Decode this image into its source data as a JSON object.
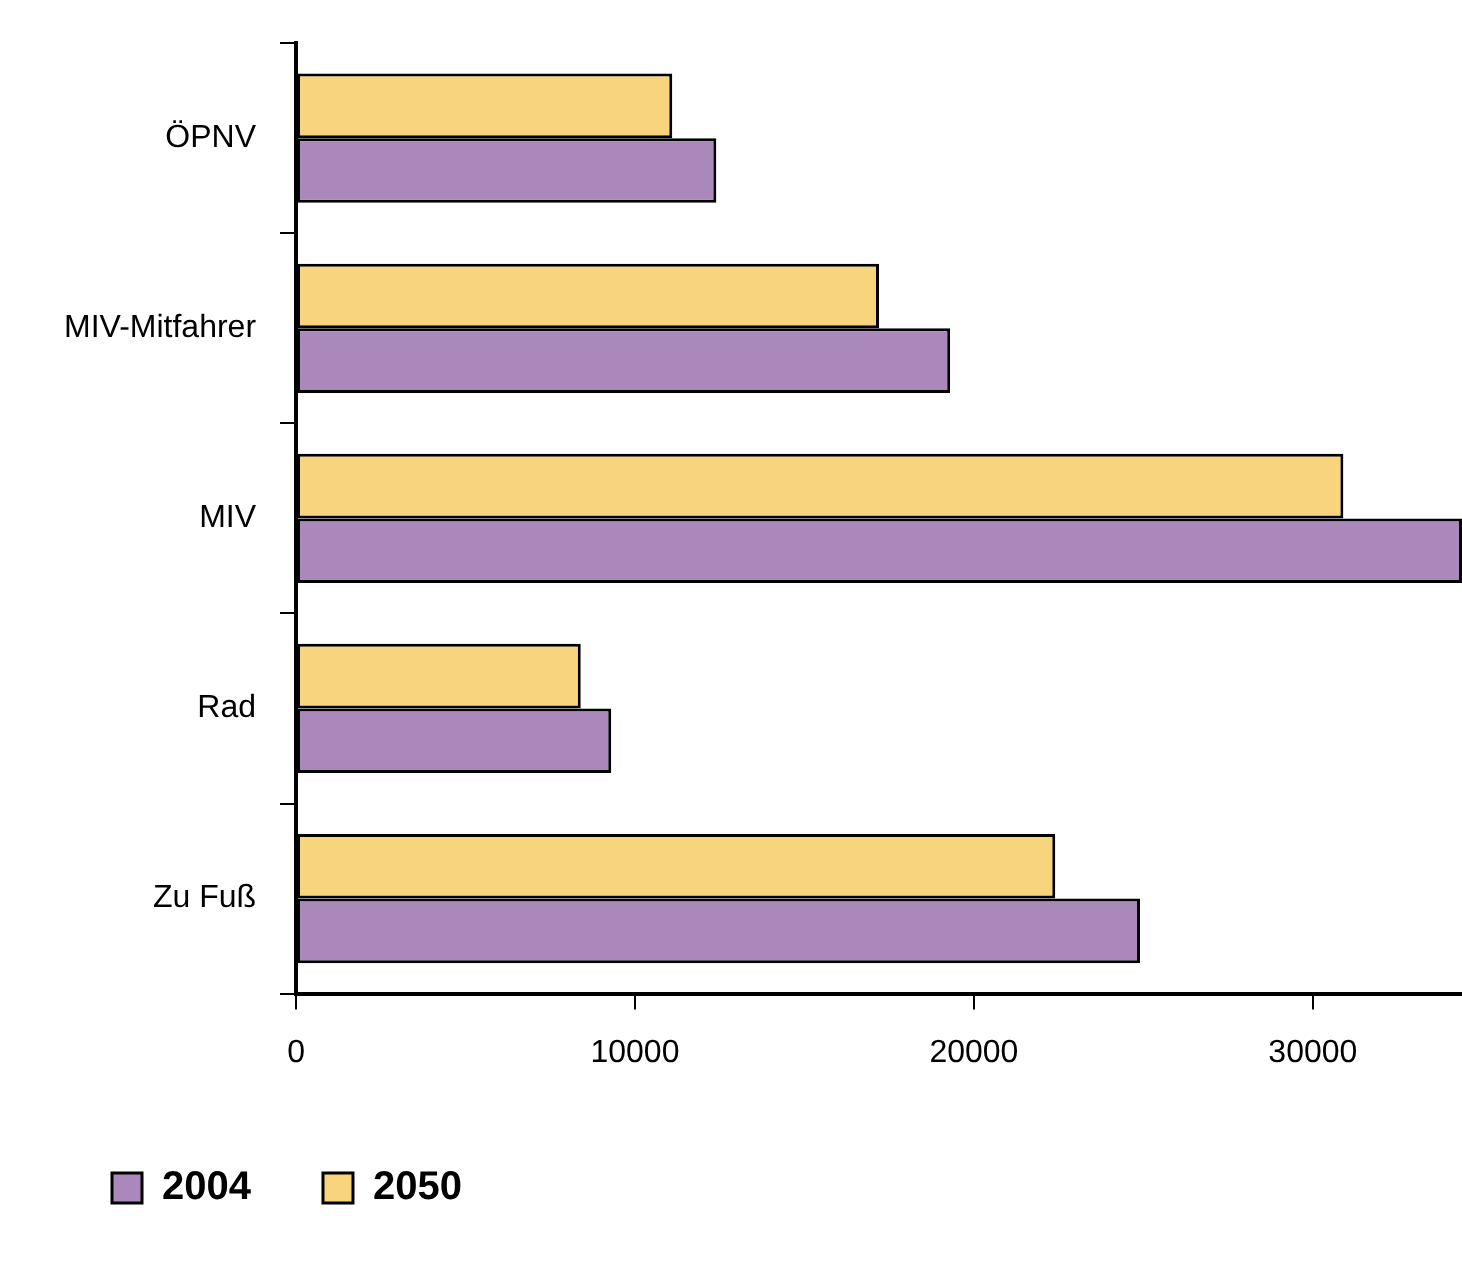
{
  "chart_data": {
    "type": "bar",
    "orientation": "horizontal",
    "categories": [
      "ÖPNV",
      "MIV-Mitfahrer",
      "MIV",
      "Rad",
      "Zu Fuß"
    ],
    "series": [
      {
        "name": "2004",
        "color": "#aa88bb",
        "values": [
          12400,
          19300,
          34400,
          9300,
          24900
        ]
      },
      {
        "name": "2050",
        "color": "#f8d47c",
        "values": [
          11100,
          17200,
          30900,
          8400,
          22400
        ]
      }
    ],
    "xlim": [
      0,
      34400
    ],
    "xticks": [
      0,
      10000,
      20000,
      30000
    ],
    "grid": false,
    "legend": "bottom"
  }
}
